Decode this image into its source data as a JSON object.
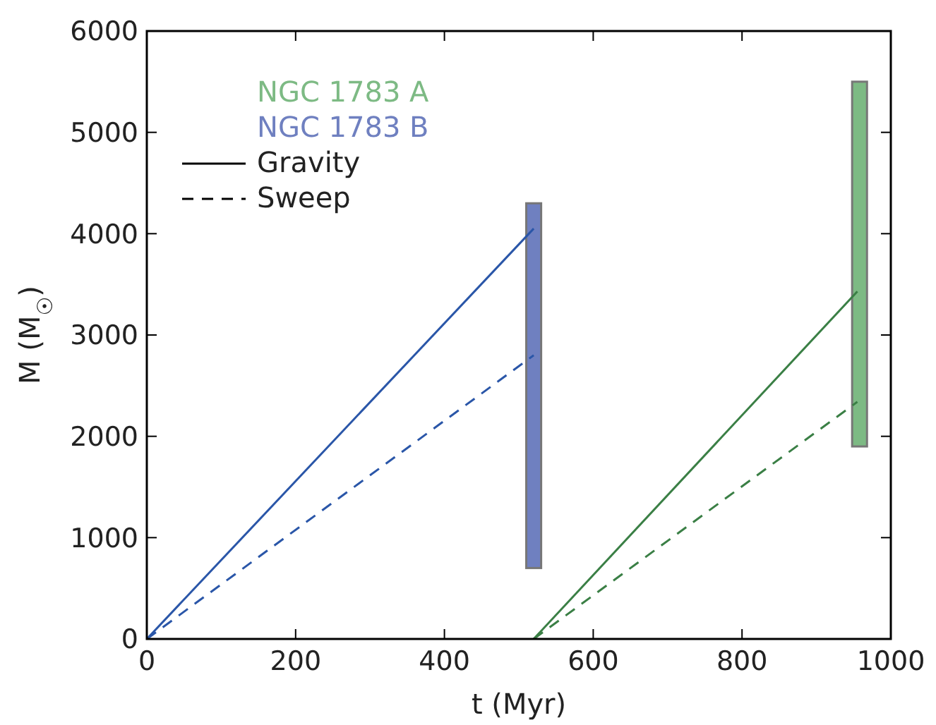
{
  "chart_data": {
    "type": "line",
    "xlabel": "t (Myr)",
    "ylabel": "M (M$_{☉}$)",
    "xlim": [
      0,
      1000
    ],
    "xticks": [
      0,
      200,
      400,
      600,
      800,
      1000
    ],
    "ylim": [
      0,
      6000
    ],
    "yticks": [
      0,
      1000,
      2000,
      3000,
      4000,
      5000,
      6000
    ],
    "grid": false,
    "legend": "top left",
    "annotations": [
      "Gravity",
      "Sweep"
    ],
    "series": [
      {
        "name": "NGC 1783 A",
        "type": "bar",
        "color": "#7dba84",
        "x": [
          958
        ],
        "base": [
          1900
        ],
        "values": [
          3600
        ]
      },
      {
        "name": "NGC 1783 B",
        "type": "bar",
        "color": "#6f80c0",
        "x": [
          520
        ],
        "base": [
          700
        ],
        "values": [
          3600
        ]
      },
      {
        "color": "#2a56a8",
        "line_style": "solid",
        "x": [
          0,
          520
        ],
        "values": [
          0,
          4050
        ]
      },
      {
        "color": "#2a56a8",
        "line_style": "dashed",
        "x": [
          0,
          520
        ],
        "values": [
          0,
          2800
        ]
      },
      {
        "color": "#3a7f45",
        "line_style": "solid",
        "x": [
          520,
          955
        ],
        "values": [
          0,
          3430
        ]
      },
      {
        "color": "#3a7f45",
        "line_style": "dashed",
        "x": [
          520,
          955
        ],
        "values": [
          0,
          2340
        ]
      }
    ]
  }
}
